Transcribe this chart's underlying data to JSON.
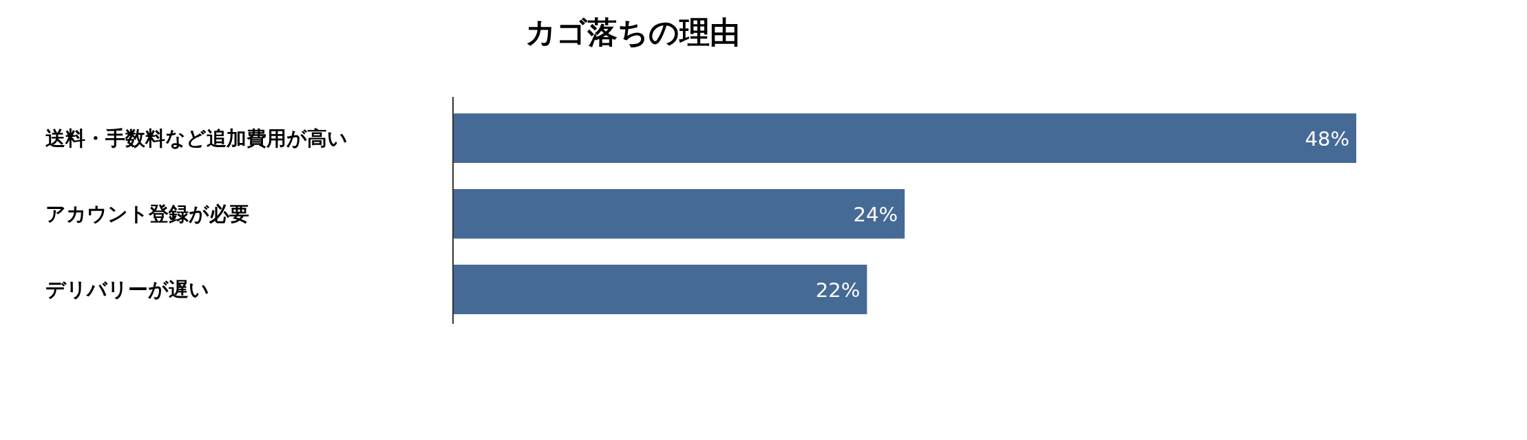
{
  "chart_data": {
    "type": "bar",
    "orientation": "horizontal",
    "title": "カゴ落ちの理由",
    "categories": [
      "送料・手数料など追加費用が高い",
      "アカウント登録が必要",
      "デリバリーが遅い"
    ],
    "values": [
      48,
      24,
      22
    ],
    "value_labels": [
      "48%",
      "24%",
      "22%"
    ],
    "color": "#466a96"
  }
}
